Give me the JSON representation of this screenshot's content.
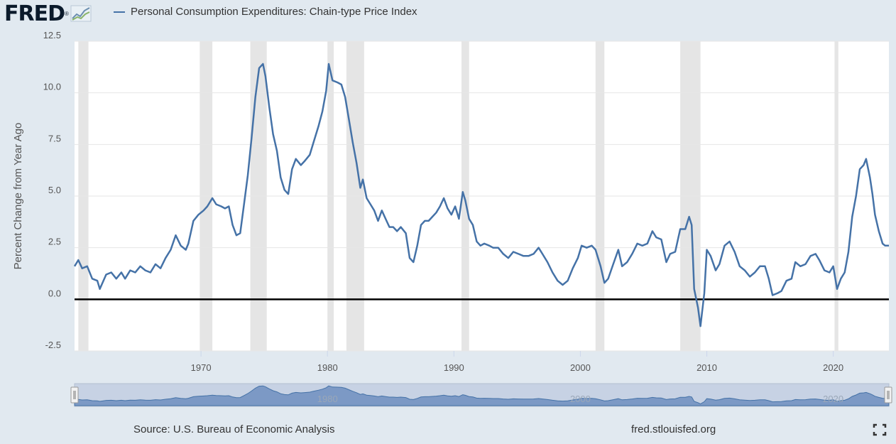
{
  "header": {
    "logo_text": "FRED",
    "logo_mark": "®",
    "logo_icon": "chart-line-icon",
    "legend_label": "Personal Consumption Expenditures: Chain-type Price Index"
  },
  "footer": {
    "source": "Source: U.S. Bureau of Economic Analysis",
    "site": "fred.stlouisfed.org",
    "fullscreen_icon": "fullscreen-icon"
  },
  "colors": {
    "line": "#4572a7",
    "recession": "#e5e5e5",
    "zero_line": "#000000",
    "background": "#e1e9f0",
    "navigator_fill": "#c7d2e4"
  },
  "chart_data": {
    "type": "line",
    "title": "Personal Consumption Expenditures: Chain-type Price Index",
    "ylabel": "Percent Change from Year Ago",
    "xlabel": "",
    "xlim": [
      1960,
      2024.4
    ],
    "ylim": [
      -2.5,
      12.5
    ],
    "yticks": [
      12.5,
      10.0,
      7.5,
      5.0,
      2.5,
      0.0,
      -2.5
    ],
    "ytick_labels": [
      "12.5",
      "10.0",
      "7.5",
      "5.0",
      "2.5",
      "0.0",
      "-2.5"
    ],
    "xticks": [
      1970,
      1980,
      1990,
      2000,
      2010,
      2020
    ],
    "xtick_labels": [
      "1970",
      "1980",
      "1990",
      "2000",
      "2010",
      "2020"
    ],
    "navigator_labels": [
      "1980",
      "2000",
      "2020"
    ],
    "recessions": [
      [
        1960.3,
        1961.1
      ],
      [
        1969.9,
        1970.9
      ],
      [
        1973.9,
        1975.2
      ],
      [
        1980.0,
        1980.5
      ],
      [
        1981.5,
        1982.9
      ],
      [
        1990.6,
        1991.2
      ],
      [
        2001.2,
        2001.9
      ],
      [
        2007.9,
        2009.5
      ],
      [
        2020.1,
        2020.4
      ]
    ],
    "series": [
      {
        "name": "Personal Consumption Expenditures: Chain-type Price Index",
        "points": [
          [
            1960.0,
            1.6
          ],
          [
            1960.3,
            1.9
          ],
          [
            1960.6,
            1.5
          ],
          [
            1961.0,
            1.6
          ],
          [
            1961.4,
            1.0
          ],
          [
            1961.8,
            0.9
          ],
          [
            1962.0,
            0.5
          ],
          [
            1962.5,
            1.2
          ],
          [
            1962.9,
            1.3
          ],
          [
            1963.3,
            1.0
          ],
          [
            1963.7,
            1.3
          ],
          [
            1964.0,
            1.0
          ],
          [
            1964.4,
            1.4
          ],
          [
            1964.8,
            1.3
          ],
          [
            1965.2,
            1.6
          ],
          [
            1965.6,
            1.4
          ],
          [
            1966.0,
            1.3
          ],
          [
            1966.4,
            1.7
          ],
          [
            1966.8,
            1.5
          ],
          [
            1967.2,
            2.0
          ],
          [
            1967.6,
            2.4
          ],
          [
            1968.0,
            3.1
          ],
          [
            1968.4,
            2.6
          ],
          [
            1968.8,
            2.4
          ],
          [
            1969.0,
            2.7
          ],
          [
            1969.4,
            3.8
          ],
          [
            1969.8,
            4.1
          ],
          [
            1970.2,
            4.3
          ],
          [
            1970.5,
            4.5
          ],
          [
            1970.9,
            4.9
          ],
          [
            1971.2,
            4.6
          ],
          [
            1971.6,
            4.5
          ],
          [
            1971.9,
            4.4
          ],
          [
            1972.2,
            4.5
          ],
          [
            1972.5,
            3.6
          ],
          [
            1972.8,
            3.1
          ],
          [
            1973.1,
            3.2
          ],
          [
            1973.4,
            4.6
          ],
          [
            1973.7,
            6.0
          ],
          [
            1974.0,
            7.8
          ],
          [
            1974.3,
            9.8
          ],
          [
            1974.6,
            11.2
          ],
          [
            1974.9,
            11.4
          ],
          [
            1975.1,
            10.8
          ],
          [
            1975.4,
            9.3
          ],
          [
            1975.7,
            8.0
          ],
          [
            1976.0,
            7.2
          ],
          [
            1976.3,
            5.9
          ],
          [
            1976.6,
            5.3
          ],
          [
            1976.9,
            5.1
          ],
          [
            1977.2,
            6.3
          ],
          [
            1977.5,
            6.8
          ],
          [
            1977.9,
            6.5
          ],
          [
            1978.2,
            6.7
          ],
          [
            1978.6,
            7.0
          ],
          [
            1978.9,
            7.6
          ],
          [
            1979.3,
            8.4
          ],
          [
            1979.6,
            9.1
          ],
          [
            1979.9,
            10.1
          ],
          [
            1980.1,
            11.4
          ],
          [
            1980.4,
            10.6
          ],
          [
            1980.8,
            10.5
          ],
          [
            1981.1,
            10.4
          ],
          [
            1981.4,
            9.8
          ],
          [
            1981.7,
            8.7
          ],
          [
            1982.0,
            7.6
          ],
          [
            1982.3,
            6.6
          ],
          [
            1982.6,
            5.4
          ],
          [
            1982.8,
            5.8
          ],
          [
            1983.1,
            4.9
          ],
          [
            1983.4,
            4.6
          ],
          [
            1983.7,
            4.3
          ],
          [
            1984.0,
            3.8
          ],
          [
            1984.3,
            4.3
          ],
          [
            1984.6,
            3.9
          ],
          [
            1984.9,
            3.5
          ],
          [
            1985.2,
            3.5
          ],
          [
            1985.5,
            3.3
          ],
          [
            1985.8,
            3.5
          ],
          [
            1986.2,
            3.2
          ],
          [
            1986.5,
            2.0
          ],
          [
            1986.8,
            1.8
          ],
          [
            1987.1,
            2.6
          ],
          [
            1987.4,
            3.6
          ],
          [
            1987.7,
            3.8
          ],
          [
            1988.0,
            3.8
          ],
          [
            1988.3,
            4.0
          ],
          [
            1988.6,
            4.2
          ],
          [
            1988.9,
            4.5
          ],
          [
            1989.2,
            4.9
          ],
          [
            1989.5,
            4.4
          ],
          [
            1989.8,
            4.1
          ],
          [
            1990.1,
            4.5
          ],
          [
            1990.4,
            3.9
          ],
          [
            1990.7,
            5.2
          ],
          [
            1990.9,
            4.8
          ],
          [
            1991.2,
            3.9
          ],
          [
            1991.5,
            3.6
          ],
          [
            1991.8,
            2.8
          ],
          [
            1992.1,
            2.6
          ],
          [
            1992.4,
            2.7
          ],
          [
            1992.8,
            2.6
          ],
          [
            1993.1,
            2.5
          ],
          [
            1993.5,
            2.5
          ],
          [
            1993.9,
            2.2
          ],
          [
            1994.3,
            2.0
          ],
          [
            1994.7,
            2.3
          ],
          [
            1995.1,
            2.2
          ],
          [
            1995.5,
            2.1
          ],
          [
            1995.9,
            2.1
          ],
          [
            1996.3,
            2.2
          ],
          [
            1996.7,
            2.5
          ],
          [
            1997.0,
            2.2
          ],
          [
            1997.4,
            1.8
          ],
          [
            1997.8,
            1.3
          ],
          [
            1998.2,
            0.9
          ],
          [
            1998.6,
            0.7
          ],
          [
            1999.0,
            0.9
          ],
          [
            1999.4,
            1.5
          ],
          [
            1999.8,
            2.0
          ],
          [
            2000.1,
            2.6
          ],
          [
            2000.5,
            2.5
          ],
          [
            2000.9,
            2.6
          ],
          [
            2001.2,
            2.4
          ],
          [
            2001.6,
            1.6
          ],
          [
            2001.9,
            0.8
          ],
          [
            2002.2,
            1.0
          ],
          [
            2002.6,
            1.7
          ],
          [
            2003.0,
            2.4
          ],
          [
            2003.3,
            1.6
          ],
          [
            2003.7,
            1.8
          ],
          [
            2004.1,
            2.2
          ],
          [
            2004.5,
            2.7
          ],
          [
            2004.9,
            2.6
          ],
          [
            2005.3,
            2.7
          ],
          [
            2005.7,
            3.3
          ],
          [
            2006.0,
            3.0
          ],
          [
            2006.4,
            2.9
          ],
          [
            2006.8,
            1.8
          ],
          [
            2007.1,
            2.2
          ],
          [
            2007.5,
            2.3
          ],
          [
            2007.9,
            3.4
          ],
          [
            2008.3,
            3.4
          ],
          [
            2008.6,
            4.0
          ],
          [
            2008.8,
            3.6
          ],
          [
            2009.0,
            0.5
          ],
          [
            2009.3,
            -0.4
          ],
          [
            2009.5,
            -1.3
          ],
          [
            2009.8,
            0.3
          ],
          [
            2010.0,
            2.4
          ],
          [
            2010.3,
            2.1
          ],
          [
            2010.7,
            1.4
          ],
          [
            2011.0,
            1.7
          ],
          [
            2011.4,
            2.6
          ],
          [
            2011.8,
            2.8
          ],
          [
            2012.2,
            2.3
          ],
          [
            2012.6,
            1.6
          ],
          [
            2013.0,
            1.4
          ],
          [
            2013.4,
            1.1
          ],
          [
            2013.8,
            1.3
          ],
          [
            2014.2,
            1.6
          ],
          [
            2014.6,
            1.6
          ],
          [
            2014.9,
            1.0
          ],
          [
            2015.2,
            0.2
          ],
          [
            2015.6,
            0.3
          ],
          [
            2015.9,
            0.4
          ],
          [
            2016.3,
            0.9
          ],
          [
            2016.7,
            1.0
          ],
          [
            2017.0,
            1.8
          ],
          [
            2017.4,
            1.6
          ],
          [
            2017.8,
            1.7
          ],
          [
            2018.2,
            2.1
          ],
          [
            2018.6,
            2.2
          ],
          [
            2018.9,
            1.9
          ],
          [
            2019.3,
            1.4
          ],
          [
            2019.7,
            1.3
          ],
          [
            2020.0,
            1.6
          ],
          [
            2020.3,
            0.5
          ],
          [
            2020.6,
            1.0
          ],
          [
            2020.9,
            1.3
          ],
          [
            2021.2,
            2.3
          ],
          [
            2021.5,
            4.0
          ],
          [
            2021.8,
            5.0
          ],
          [
            2022.1,
            6.3
          ],
          [
            2022.4,
            6.5
          ],
          [
            2022.6,
            6.8
          ],
          [
            2022.9,
            5.9
          ],
          [
            2023.1,
            5.1
          ],
          [
            2023.3,
            4.1
          ],
          [
            2023.6,
            3.3
          ],
          [
            2023.9,
            2.7
          ],
          [
            2024.1,
            2.6
          ],
          [
            2024.4,
            2.6
          ]
        ]
      }
    ]
  }
}
